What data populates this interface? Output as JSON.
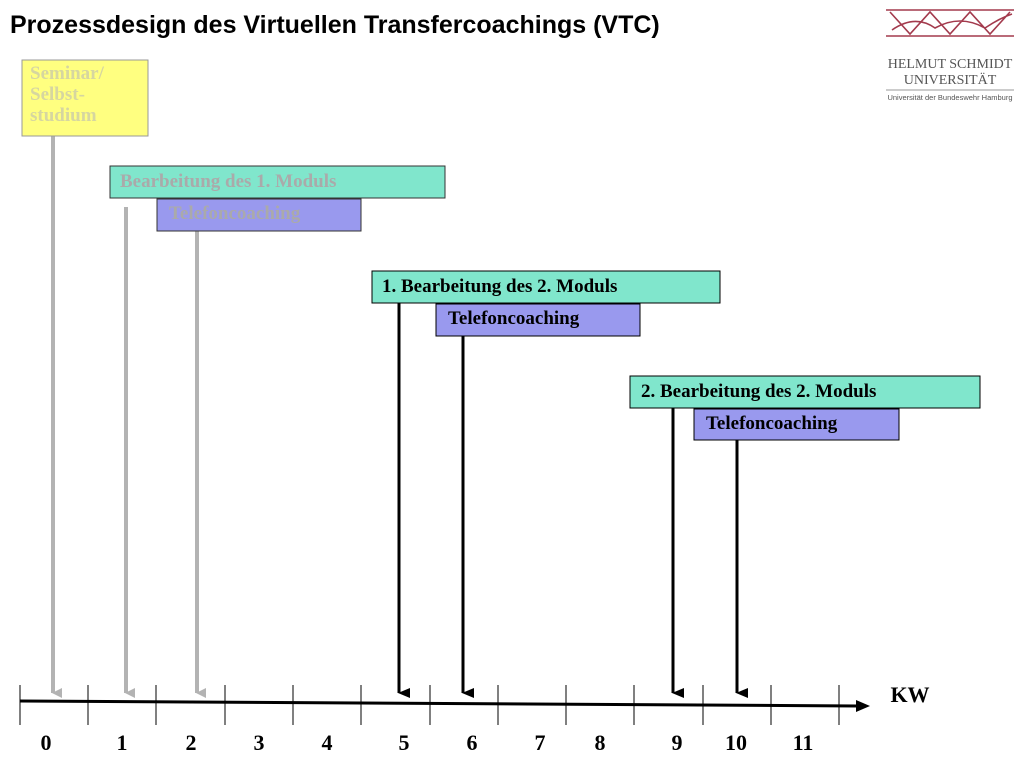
{
  "title": "Prozessdesign des Virtuellen Transfercoachings (VTC)",
  "logo": {
    "name": "HELMUT SCHMIDT",
    "subname": "UNIVERSITÄT",
    "tagline": "Universität der Bundeswehr Hamburg"
  },
  "boxes": [
    {
      "lines": [
        "Seminar/",
        "Selbst-",
        "studium"
      ]
    },
    {
      "label": "Bearbeitung des 1. Moduls"
    },
    {
      "label": "Telefoncoaching"
    },
    {
      "label": "1. Bearbeitung des 2. Moduls"
    },
    {
      "label": "Telefoncoaching"
    },
    {
      "label": "2. Bearbeitung des 2. Moduls"
    },
    {
      "label": "Telefoncoaching"
    }
  ],
  "timeline": {
    "unit": "KW",
    "labels": [
      0,
      1,
      2,
      3,
      4,
      5,
      6,
      7,
      8,
      9,
      10,
      11
    ]
  }
}
